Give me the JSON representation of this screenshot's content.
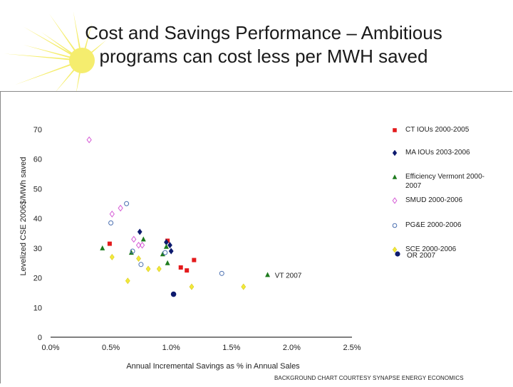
{
  "slide": {
    "title_line1": "Cost and Savings Performance – Ambitious",
    "title_line2": "programs can cost less per MWH saved",
    "credit": "BACKGROUND CHART COURTESY SYNAPSE ENERGY ECONOMICS"
  },
  "colors": {
    "red": "#e31a1c",
    "navy": "#0d1a6e",
    "green": "#1e7b1e",
    "magenta": "#d65cd6",
    "blue": "#4a6fb0",
    "yellow": "#f2ea3a",
    "burst": "#f3e94a"
  },
  "chart_data": {
    "type": "scatter",
    "xlabel": "Annual Incremental Savings as % in Annual Sales",
    "ylabel": "Levelized CSE 2006$/MWh saved",
    "xlim": [
      0,
      2.5
    ],
    "ylim": [
      0,
      70
    ],
    "x_ticks": [
      0,
      0.5,
      1.0,
      1.5,
      2.0,
      2.5
    ],
    "x_tick_labels": [
      "0.0%",
      "0.5%",
      "1.0%",
      "1.5%",
      "2.0%",
      "2.5%"
    ],
    "y_ticks": [
      0,
      10,
      20,
      30,
      40,
      50,
      60,
      70
    ],
    "y_tick_labels": [
      "0",
      "10",
      "20",
      "30",
      "40",
      "50",
      "60",
      "70"
    ],
    "grid": false,
    "legend_position": "right",
    "series": [
      {
        "name": "CT IOUs 2000-2005",
        "marker": "square",
        "color": "#e31a1c",
        "points": [
          [
            0.49,
            31.5
          ],
          [
            0.97,
            32.5
          ],
          [
            1.08,
            23.5
          ],
          [
            1.13,
            22.5
          ],
          [
            1.19,
            26.0
          ]
        ]
      },
      {
        "name": "MA IOUs 2003-2006",
        "marker": "diamond",
        "color": "#0d1a6e",
        "points": [
          [
            0.74,
            35.5
          ],
          [
            0.96,
            32.0
          ],
          [
            0.99,
            31.0
          ],
          [
            1.0,
            29.0
          ]
        ]
      },
      {
        "name": "Efficiency Vermont 2000-2007",
        "marker": "triangle",
        "color": "#1e7b1e",
        "points": [
          [
            0.43,
            30.0
          ],
          [
            0.67,
            28.5
          ],
          [
            0.77,
            33.0
          ],
          [
            0.93,
            28.0
          ],
          [
            0.96,
            30.5
          ],
          [
            0.97,
            25.0
          ],
          [
            1.8,
            21.0
          ]
        ]
      },
      {
        "name": "SMUD 2000-2006",
        "marker": "open-diamond",
        "color": "#d65cd6",
        "points": [
          [
            0.32,
            66.5
          ],
          [
            0.51,
            41.5
          ],
          [
            0.58,
            43.5
          ],
          [
            0.69,
            33.0
          ],
          [
            0.73,
            31.0
          ],
          [
            0.76,
            31.0
          ]
        ]
      },
      {
        "name": "PG&E 2000-2006",
        "marker": "open-circle",
        "color": "#4a6fb0",
        "points": [
          [
            0.5,
            38.5
          ],
          [
            0.63,
            45.0
          ],
          [
            0.68,
            29.0
          ],
          [
            0.75,
            24.5
          ],
          [
            0.95,
            28.5
          ],
          [
            1.42,
            21.5
          ]
        ]
      },
      {
        "name": "SCE 2000-2006",
        "marker": "diamond",
        "color": "#f2ea3a",
        "points": [
          [
            0.51,
            27.0
          ],
          [
            0.64,
            19.0
          ],
          [
            0.73,
            26.5
          ],
          [
            0.81,
            23.0
          ],
          [
            0.9,
            23.0
          ],
          [
            1.17,
            17.0
          ],
          [
            1.6,
            17.0
          ]
        ]
      },
      {
        "name": "OR 2007",
        "marker": "circle",
        "color": "#0d1a6e",
        "points": [
          [
            1.02,
            14.5
          ]
        ]
      }
    ],
    "annotations": [
      {
        "text": "VT 2007",
        "x": 1.86,
        "y": 21.0
      }
    ]
  }
}
